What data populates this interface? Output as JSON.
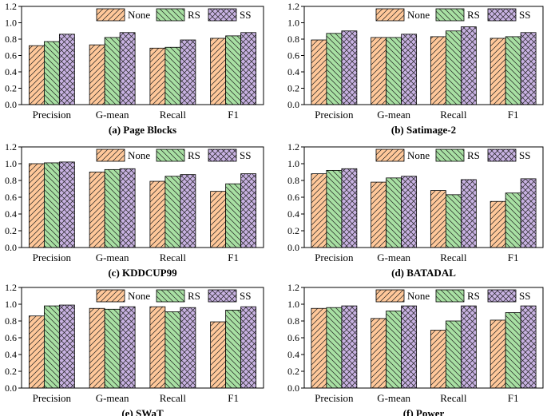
{
  "colors": {
    "None": "#ffc89a",
    "RS": "#a8e0a3",
    "SS": "#c8b2e2"
  },
  "patterns": {
    "None": "diag-forward",
    "RS": "diag-back",
    "SS": "cross-hatch"
  },
  "chart_data": [
    {
      "type": "bar",
      "title": "(a) Page Blocks",
      "categories": [
        "Precision",
        "G-mean",
        "Recall",
        "F1"
      ],
      "series": [
        {
          "name": "None",
          "values": [
            0.72,
            0.73,
            0.69,
            0.81
          ]
        },
        {
          "name": "RS",
          "values": [
            0.77,
            0.82,
            0.7,
            0.84
          ]
        },
        {
          "name": "SS",
          "values": [
            0.86,
            0.88,
            0.79,
            0.88
          ]
        }
      ],
      "yticks": [
        "0.0",
        "0.2",
        "0.4",
        "0.6",
        "0.8",
        "1.0",
        "1.2"
      ],
      "ylim": [
        0,
        1.2
      ],
      "legend": "top-right"
    },
    {
      "type": "bar",
      "title": "(b) Satimage-2",
      "categories": [
        "Precision",
        "G-mean",
        "Recall",
        "F1"
      ],
      "series": [
        {
          "name": "None",
          "values": [
            0.79,
            0.82,
            0.83,
            0.81
          ]
        },
        {
          "name": "RS",
          "values": [
            0.87,
            0.82,
            0.9,
            0.83
          ]
        },
        {
          "name": "SS",
          "values": [
            0.9,
            0.86,
            0.95,
            0.88
          ]
        }
      ],
      "yticks": [
        "0.0",
        "0.2",
        "0.4",
        "0.6",
        "0.8",
        "1.0",
        "1.2"
      ],
      "ylim": [
        0,
        1.2
      ],
      "legend": "top-right"
    },
    {
      "type": "bar",
      "title": "(c) KDDCUP99",
      "categories": [
        "Precision",
        "G-mean",
        "Recall",
        "F1"
      ],
      "series": [
        {
          "name": "None",
          "values": [
            1.0,
            0.9,
            0.79,
            0.67
          ]
        },
        {
          "name": "RS",
          "values": [
            1.01,
            0.93,
            0.85,
            0.76
          ]
        },
        {
          "name": "SS",
          "values": [
            1.02,
            0.94,
            0.87,
            0.88
          ]
        }
      ],
      "yticks": [
        "0.0",
        "0.2",
        "0.4",
        "0.6",
        "0.8",
        "1.0",
        "1.2"
      ],
      "ylim": [
        0,
        1.2
      ],
      "legend": "top-right"
    },
    {
      "type": "bar",
      "title": "(d) BATADAL",
      "categories": [
        "Precision",
        "G-mean",
        "Recall",
        "F1"
      ],
      "series": [
        {
          "name": "None",
          "values": [
            0.88,
            0.78,
            0.68,
            0.55
          ]
        },
        {
          "name": "RS",
          "values": [
            0.92,
            0.83,
            0.63,
            0.65
          ]
        },
        {
          "name": "SS",
          "values": [
            0.94,
            0.85,
            0.81,
            0.82
          ]
        }
      ],
      "yticks": [
        "0.0",
        "0.2",
        "0.4",
        "0.6",
        "0.8",
        "1.0",
        "1.2"
      ],
      "ylim": [
        0,
        1.2
      ],
      "legend": "top-right"
    },
    {
      "type": "bar",
      "title": "(e) SWaT",
      "categories": [
        "Precision",
        "G-mean",
        "Recall",
        "F1"
      ],
      "series": [
        {
          "name": "None",
          "values": [
            0.86,
            0.95,
            0.97,
            0.79
          ]
        },
        {
          "name": "RS",
          "values": [
            0.98,
            0.94,
            0.91,
            0.93
          ]
        },
        {
          "name": "SS",
          "values": [
            0.99,
            0.97,
            0.96,
            0.97
          ]
        }
      ],
      "yticks": [
        "0.0",
        "0.2",
        "0.4",
        "0.6",
        "0.8",
        "1.0",
        "1.2"
      ],
      "ylim": [
        0,
        1.2
      ],
      "legend": "top-right"
    },
    {
      "type": "bar",
      "title": "(f) Power",
      "categories": [
        "Precision",
        "G-mean",
        "Recall",
        "F1"
      ],
      "series": [
        {
          "name": "None",
          "values": [
            0.95,
            0.83,
            0.69,
            0.81
          ]
        },
        {
          "name": "RS",
          "values": [
            0.96,
            0.92,
            0.8,
            0.9
          ]
        },
        {
          "name": "SS",
          "values": [
            0.98,
            0.98,
            0.98,
            0.98
          ]
        }
      ],
      "yticks": [
        "0.0",
        "0.2",
        "0.4",
        "0.6",
        "0.8",
        "1.0",
        "1.2"
      ],
      "ylim": [
        0,
        1.2
      ],
      "legend": "top-right"
    }
  ]
}
